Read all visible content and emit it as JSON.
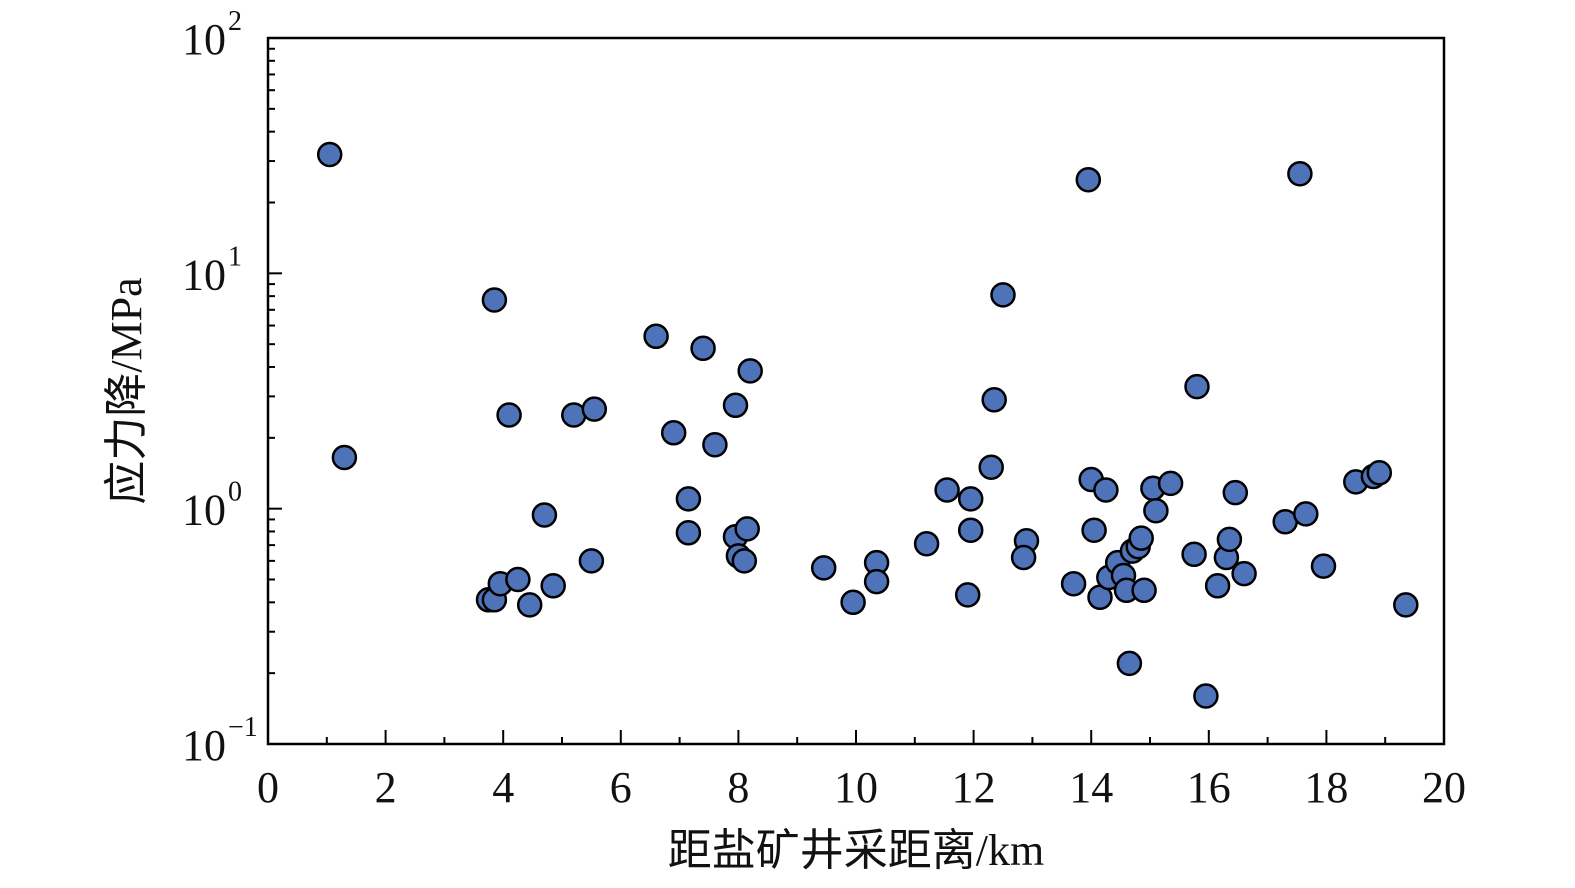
{
  "chart_data": {
    "type": "scatter",
    "xlabel": "距盐矿井采距离/km",
    "ylabel": "应力降/MPa",
    "xlim": [
      0,
      20
    ],
    "ylim": [
      0.1,
      100
    ],
    "yscale": "log",
    "grid": false,
    "x_ticks": [
      "0",
      "2",
      "4",
      "6",
      "8",
      "10",
      "12",
      "14",
      "16",
      "18",
      "20"
    ],
    "y_ticks": [
      {
        "base": "10",
        "exp": "−1",
        "value": 0.1
      },
      {
        "base": "10",
        "exp": "0",
        "value": 1
      },
      {
        "base": "10",
        "exp": "1",
        "value": 10
      },
      {
        "base": "10",
        "exp": "2",
        "value": 100
      }
    ],
    "marker_color": "#4f73b8",
    "points": [
      [
        1.05,
        32
      ],
      [
        1.3,
        1.65
      ],
      [
        3.85,
        7.7
      ],
      [
        4.1,
        2.5
      ],
      [
        3.75,
        0.41
      ],
      [
        3.85,
        0.41
      ],
      [
        3.95,
        0.48
      ],
      [
        4.25,
        0.5
      ],
      [
        4.45,
        0.39
      ],
      [
        4.7,
        0.94
      ],
      [
        4.85,
        0.47
      ],
      [
        5.2,
        2.5
      ],
      [
        5.55,
        2.65
      ],
      [
        5.5,
        0.6
      ],
      [
        6.6,
        5.4
      ],
      [
        6.9,
        2.1
      ],
      [
        7.15,
        1.1
      ],
      [
        7.15,
        0.79
      ],
      [
        7.4,
        4.8
      ],
      [
        7.6,
        1.87
      ],
      [
        7.95,
        2.75
      ],
      [
        8.2,
        3.85
      ],
      [
        7.95,
        0.76
      ],
      [
        8.15,
        0.82
      ],
      [
        8.0,
        0.63
      ],
      [
        8.1,
        0.6
      ],
      [
        9.45,
        0.56
      ],
      [
        9.95,
        0.4
      ],
      [
        10.35,
        0.59
      ],
      [
        10.35,
        0.49
      ],
      [
        11.2,
        0.71
      ],
      [
        11.55,
        1.2
      ],
      [
        11.9,
        0.43
      ],
      [
        11.95,
        1.1
      ],
      [
        11.95,
        0.81
      ],
      [
        12.3,
        1.5
      ],
      [
        12.35,
        2.9
      ],
      [
        12.5,
        8.1
      ],
      [
        12.9,
        0.73
      ],
      [
        12.85,
        0.62
      ],
      [
        13.7,
        0.48
      ],
      [
        13.95,
        25
      ],
      [
        14.0,
        1.33
      ],
      [
        14.05,
        0.81
      ],
      [
        14.25,
        1.2
      ],
      [
        14.15,
        0.42
      ],
      [
        14.3,
        0.51
      ],
      [
        14.45,
        0.59
      ],
      [
        14.55,
        0.52
      ],
      [
        14.6,
        0.45
      ],
      [
        14.65,
        0.22
      ],
      [
        14.7,
        0.66
      ],
      [
        14.8,
        0.69
      ],
      [
        14.85,
        0.75
      ],
      [
        14.9,
        0.45
      ],
      [
        15.05,
        1.22
      ],
      [
        15.1,
        0.98
      ],
      [
        15.35,
        1.28
      ],
      [
        15.75,
        0.64
      ],
      [
        15.8,
        3.3
      ],
      [
        15.95,
        0.16
      ],
      [
        16.15,
        0.47
      ],
      [
        16.3,
        0.62
      ],
      [
        16.35,
        0.74
      ],
      [
        16.45,
        1.17
      ],
      [
        16.6,
        0.53
      ],
      [
        17.3,
        0.88
      ],
      [
        17.55,
        26.5
      ],
      [
        17.65,
        0.95
      ],
      [
        17.95,
        0.57
      ],
      [
        18.5,
        1.3
      ],
      [
        18.8,
        1.37
      ],
      [
        18.9,
        1.42
      ],
      [
        19.35,
        0.39
      ]
    ]
  }
}
